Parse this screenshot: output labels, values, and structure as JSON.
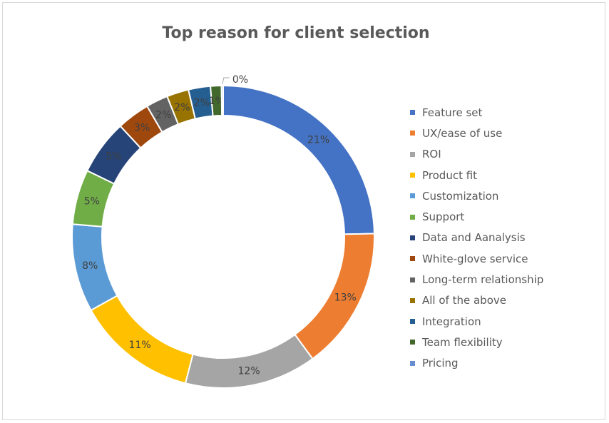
{
  "chart_data": {
    "type": "pie",
    "donut": true,
    "title": "Top reason for client selection",
    "legend_position": "right",
    "slices": [
      {
        "name": "Feature set",
        "value": 21,
        "label": "21%",
        "color": "#4472c4"
      },
      {
        "name": "UX/ease of use",
        "value": 13,
        "label": "13%",
        "color": "#ed7d31"
      },
      {
        "name": "ROI",
        "value": 12,
        "label": "12%",
        "color": "#a5a5a5"
      },
      {
        "name": "Product fit",
        "value": 11,
        "label": "11%",
        "color": "#ffc000"
      },
      {
        "name": "Customization",
        "value": 8,
        "label": "8%",
        "color": "#5b9bd5"
      },
      {
        "name": "Support",
        "value": 5,
        "label": "5%",
        "color": "#70ad47"
      },
      {
        "name": "Data and Aanalysis",
        "value": 5,
        "label": "5%",
        "color": "#264478"
      },
      {
        "name": "White-glove service",
        "value": 3,
        "label": "3%",
        "color": "#9e480e"
      },
      {
        "name": "Long-term relationship",
        "value": 2,
        "label": "2%",
        "color": "#636363"
      },
      {
        "name": "All of the above",
        "value": 2,
        "label": "2%",
        "color": "#997300"
      },
      {
        "name": "Integration",
        "value": 2,
        "label": "2%",
        "color": "#255e91"
      },
      {
        "name": "Team flexibility",
        "value": 1,
        "label": "1%",
        "color": "#43682b"
      },
      {
        "name": "Pricing",
        "value": 0.15,
        "label": "0%",
        "color": "#698ed0"
      }
    ]
  }
}
